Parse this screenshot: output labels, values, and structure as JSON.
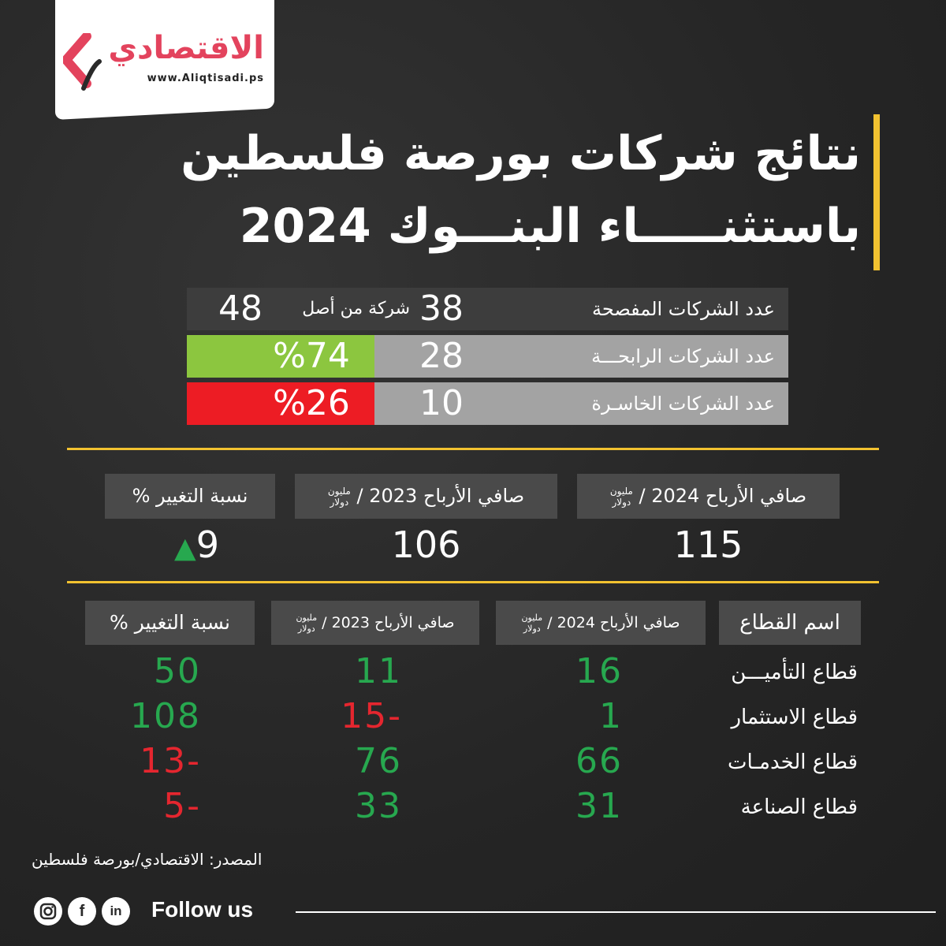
{
  "brand": {
    "name": "الاقتصادي",
    "url": "www.Aliqtisadi.ps"
  },
  "title": {
    "line1": "نتائج شركات بورصة فلسطين",
    "line2": "باستثنـــــاء البنـــوك 2024"
  },
  "summary": {
    "disclosed": {
      "label": "عدد الشركات المفصحة",
      "value": "38",
      "middle": "شركة من أصل",
      "total": "48"
    },
    "profitable": {
      "label": "عدد الشركات الرابحـــة",
      "value": "28",
      "percent": "%74"
    },
    "losing": {
      "label": "عدد الشركات الخاسـرة",
      "value": "10",
      "percent": "%26"
    }
  },
  "profits": {
    "h2024": "صافي الأرباح 2024 /",
    "h2023": "صافي الأرباح 2023 /",
    "unit_top": "مليون",
    "unit_bottom": "دولار",
    "hchange": "نسبة التغيير %",
    "v2024": "115",
    "v2023": "106",
    "vchange": "9",
    "arrow": "▲"
  },
  "sectors": {
    "header": {
      "name": "اسم القطاع",
      "p2024": "صافي الأرباح 2024 /",
      "p2023": "صافي الأرباح 2023 /",
      "unit_top": "مليون",
      "unit_bottom": "دولار",
      "change": "نسبة التغيير %"
    },
    "rows": [
      {
        "name": "قطاع التأميـــن",
        "p2024": "16",
        "p2023": "11",
        "change": "50"
      },
      {
        "name": "قطاع الاستثمار",
        "p2024": "1",
        "p2023": "15-",
        "change": "108"
      },
      {
        "name": "قطاع الخدمـات",
        "p2024": "66",
        "p2023": "76",
        "change": "13-"
      },
      {
        "name": "قطاع الصناعة",
        "p2024": "31",
        "p2023": "33",
        "change": "5-"
      }
    ]
  },
  "source": "المصدر: الاقتصادي/بورصة فلسطين",
  "footer": {
    "follow": "Follow us",
    "social": [
      "instagram-icon",
      "facebook-icon",
      "linkedin-icon"
    ]
  },
  "colors": {
    "accent": "#f2c230",
    "positive": "#27a84f",
    "negative": "#e5262f",
    "profit_bar": "#8cc63f",
    "loss_bar": "#ed1c24",
    "brand": "#e3435d"
  }
}
